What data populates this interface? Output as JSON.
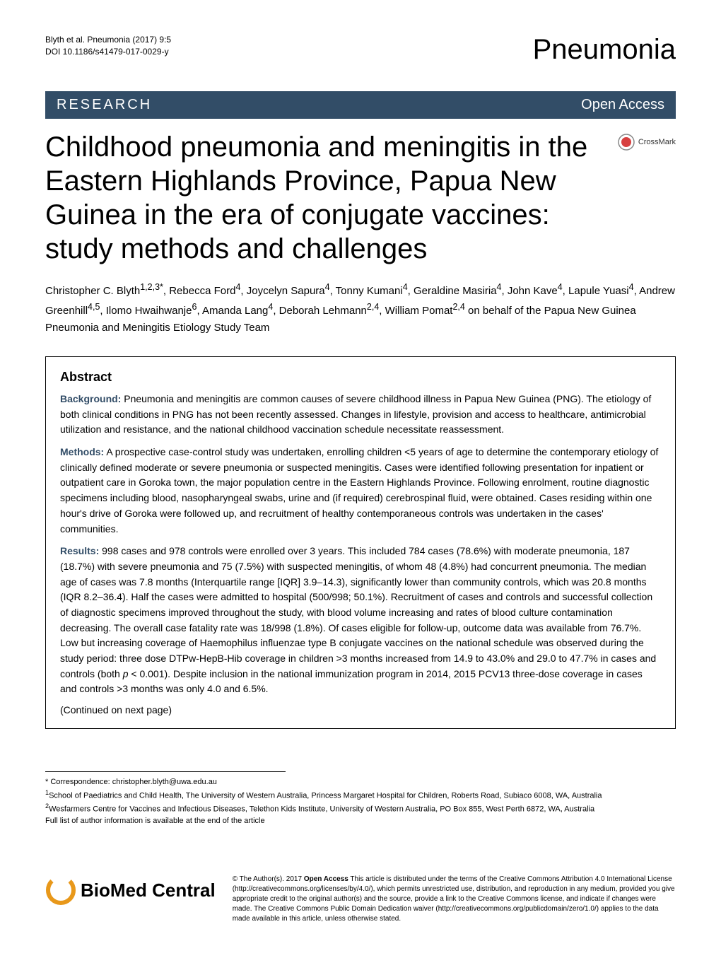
{
  "header": {
    "citation_line1": "Blyth et al. Pneumonia  (2017) 9:5",
    "citation_line2": "DOI 10.1186/s41479-017-0029-y",
    "journal": "Pneumonia"
  },
  "banner": {
    "left": "RESEARCH",
    "right": "Open Access"
  },
  "crossmark": {
    "label": "CrossMark"
  },
  "title": "Childhood pneumonia and meningitis in the Eastern Highlands Province, Papua New Guinea in the era of conjugate vaccines: study methods and challenges",
  "authors_html": "Christopher C. Blyth<sup>1,2,3*</sup>, Rebecca Ford<sup>4</sup>, Joycelyn Sapura<sup>4</sup>, Tonny Kumani<sup>4</sup>, Geraldine Masiria<sup>4</sup>, John Kave<sup>4</sup>, Lapule Yuasi<sup>4</sup>, Andrew Greenhill<sup>4,5</sup>, Ilomo Hwaihwanje<sup>6</sup>, Amanda Lang<sup>4</sup>, Deborah Lehmann<sup>2,4</sup>, William Pomat<sup>2,4</sup> on behalf of the Papua New Guinea Pneumonia and Meningitis Etiology Study Team",
  "abstract": {
    "title": "Abstract",
    "background_label": "Background:",
    "background_text": " Pneumonia and meningitis are common causes of severe childhood illness in Papua New Guinea (PNG). The etiology of both clinical conditions in PNG has not been recently assessed. Changes in lifestyle, provision and access to healthcare, antimicrobial utilization and resistance, and the national childhood vaccination schedule necessitate reassessment.",
    "methods_label": "Methods:",
    "methods_text": " A prospective case-control study was undertaken, enrolling children <5 years of age to determine the contemporary etiology of clinically defined moderate or severe pneumonia or suspected meningitis. Cases were identified following presentation for inpatient or outpatient care in Goroka town, the major population centre in the Eastern Highlands Province. Following enrolment, routine diagnostic specimens including blood, nasopharyngeal swabs, urine and (if required) cerebrospinal fluid, were obtained. Cases residing within one hour's drive of Goroka were followed up, and recruitment of healthy contemporaneous controls was undertaken in the cases' communities.",
    "results_label": "Results:",
    "results_text": " 998 cases and 978 controls were enrolled over 3 years. This included 784 cases (78.6%) with moderate pneumonia, 187 (18.7%) with severe pneumonia and 75 (7.5%) with suspected meningitis, of whom 48 (4.8%) had concurrent pneumonia. The median age of cases was 7.8 months (Interquartile range [IQR] 3.9–14.3), significantly lower than community controls, which was 20.8 months (IQR 8.2–36.4). Half the cases were admitted to hospital (500/998; 50.1%). Recruitment of cases and controls and successful collection of diagnostic specimens improved throughout the study, with blood volume increasing and rates of blood culture contamination decreasing. The overall case fatality rate was 18/998 (1.8%). Of cases eligible for follow-up, outcome data was available from 76.7%. Low but increasing coverage of Haemophilus influenzae type B conjugate vaccines on the national schedule was observed during the study period: three dose DTPw-HepB-Hib coverage in children >3 months increased from 14.9 to 43.0% and 29.0 to 47.7% in cases and controls (both p < 0.001). Despite inclusion in the national immunization program in 2014, 2015 PCV13 three-dose coverage in cases and controls >3 months was only 4.0 and 6.5%.",
    "continued": "(Continued on next page)"
  },
  "correspondence": {
    "line1": "* Correspondence: christopher.blyth@uwa.edu.au",
    "line2_sup": "1",
    "line2": "School of Paediatrics and Child Health, The University of Western Australia, Princess Margaret Hospital for Children, Roberts Road, Subiaco 6008, WA, Australia",
    "line3_sup": "2",
    "line3": "Wesfarmers Centre for Vaccines and Infectious Diseases, Telethon Kids Institute, University of Western Australia, PO Box 855, West Perth 6872, WA, Australia",
    "line4": "Full list of author information is available at the end of the article"
  },
  "footer": {
    "bmc_logo_text": "BioMed Central",
    "license_prefix": "© The Author(s). 2017 ",
    "license_bold": "Open Access",
    "license_text": " This article is distributed under the terms of the Creative Commons Attribution 4.0 International License (http://creativecommons.org/licenses/by/4.0/), which permits unrestricted use, distribution, and reproduction in any medium, provided you give appropriate credit to the original author(s) and the source, provide a link to the Creative Commons license, and indicate if changes were made. The Creative Commons Public Domain Dedication waiver (http://creativecommons.org/publicdomain/zero/1.0/) applies to the data made available in this article, unless otherwise stated."
  },
  "colors": {
    "banner_bg": "#324d67",
    "banner_fg": "#ffffff",
    "section_label": "#324d67",
    "crossmark_ring": "#d73f3f"
  }
}
